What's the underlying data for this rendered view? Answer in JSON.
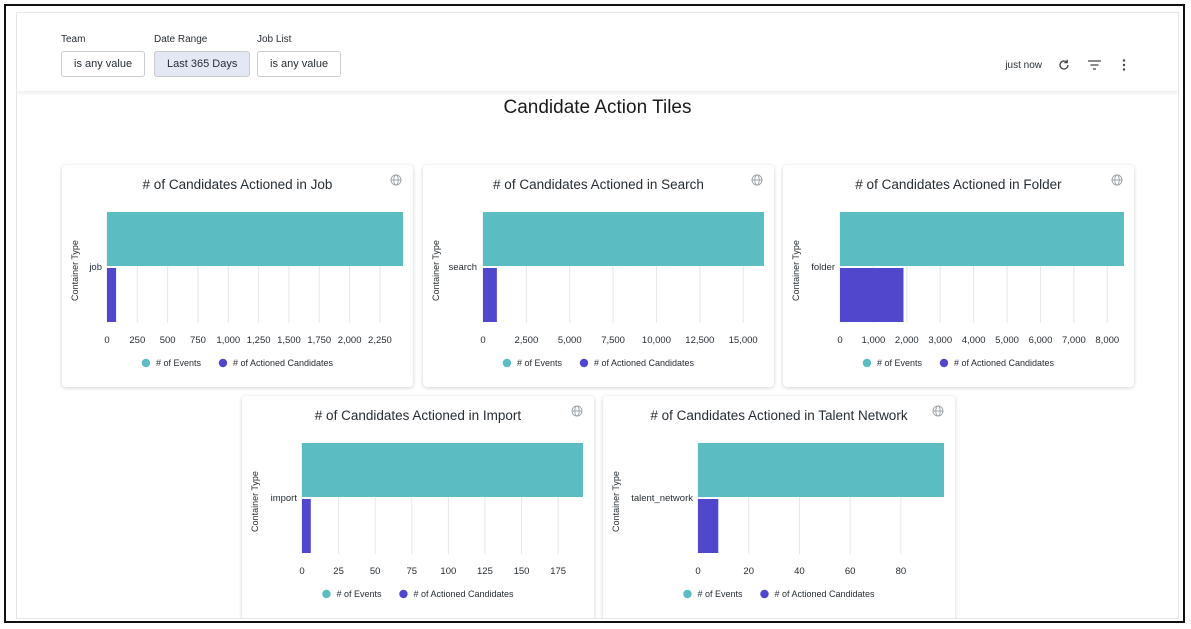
{
  "filters": [
    {
      "label": "Team",
      "value": "is any value",
      "active": false
    },
    {
      "label": "Date Range",
      "value": "Last 365 Days",
      "active": true
    },
    {
      "label": "Job List",
      "value": "is any value",
      "active": false
    }
  ],
  "toolbar": {
    "status": "just now",
    "refresh_icon": "refresh-icon",
    "filter_icon": "filter-icon",
    "menu_icon": "kebab-menu-icon"
  },
  "dashboard": {
    "title": "Candidate Action Tiles"
  },
  "colors": {
    "events": "#5bbcc1",
    "actioned": "#5047cc",
    "grid": "#e6e7e9",
    "text": "#262d33"
  },
  "chart_data": [
    {
      "type": "bar",
      "orientation": "horizontal",
      "title": "# of Candidates Actioned in Job",
      "ylabel": "Container Type",
      "categories": [
        "job"
      ],
      "series": [
        {
          "name": "# of Events",
          "values": [
            2440
          ]
        },
        {
          "name": "# of Actioned Candidates",
          "values": [
            75
          ]
        }
      ],
      "xlim": [
        0,
        2440
      ],
      "xticks": [
        0,
        250,
        500,
        750,
        1000,
        1250,
        1500,
        1750,
        2000,
        2250
      ],
      "xtick_labels": [
        "0",
        "250",
        "500",
        "750",
        "1,000",
        "1,250",
        "1,500",
        "1,750",
        "2,000",
        "2,250"
      ]
    },
    {
      "type": "bar",
      "orientation": "horizontal",
      "title": "# of Candidates Actioned in Search",
      "ylabel": "Container Type",
      "categories": [
        "search"
      ],
      "series": [
        {
          "name": "# of Events",
          "values": [
            16200
          ]
        },
        {
          "name": "# of Actioned Candidates",
          "values": [
            800
          ]
        }
      ],
      "xlim": [
        0,
        16200
      ],
      "xticks": [
        0,
        2500,
        5000,
        7500,
        10000,
        12500,
        15000
      ],
      "xtick_labels": [
        "0",
        "2,500",
        "5,000",
        "7,500",
        "10,000",
        "12,500",
        "15,000"
      ]
    },
    {
      "type": "bar",
      "orientation": "horizontal",
      "title": "# of Candidates Actioned in Folder",
      "ylabel": "Container Type",
      "categories": [
        "folder"
      ],
      "series": [
        {
          "name": "# of Events",
          "values": [
            8500
          ]
        },
        {
          "name": "# of Actioned Candidates",
          "values": [
            1900
          ]
        }
      ],
      "xlim": [
        0,
        8500
      ],
      "xticks": [
        0,
        1000,
        2000,
        3000,
        4000,
        5000,
        6000,
        7000,
        8000
      ],
      "xtick_labels": [
        "0",
        "1,000",
        "2,000",
        "3,000",
        "4,000",
        "5,000",
        "6,000",
        "7,000",
        "8,000"
      ]
    },
    {
      "type": "bar",
      "orientation": "horizontal",
      "title": "# of Candidates Actioned in Import",
      "ylabel": "Container Type",
      "categories": [
        "import"
      ],
      "series": [
        {
          "name": "# of Events",
          "values": [
            192
          ]
        },
        {
          "name": "# of Actioned Candidates",
          "values": [
            6
          ]
        }
      ],
      "xlim": [
        0,
        192
      ],
      "xticks": [
        0,
        25,
        50,
        75,
        100,
        125,
        150,
        175
      ],
      "xtick_labels": [
        "0",
        "25",
        "50",
        "75",
        "100",
        "125",
        "150",
        "175"
      ]
    },
    {
      "type": "bar",
      "orientation": "horizontal",
      "title": "# of Candidates Actioned in Talent Network",
      "ylabel": "Container Type",
      "categories": [
        "talent_network"
      ],
      "series": [
        {
          "name": "# of Events",
          "values": [
            97
          ]
        },
        {
          "name": "# of Actioned Candidates",
          "values": [
            8
          ]
        }
      ],
      "xlim": [
        0,
        97
      ],
      "xticks": [
        0,
        20,
        40,
        60,
        80
      ],
      "xtick_labels": [
        "0",
        "20",
        "40",
        "60",
        "80"
      ]
    }
  ]
}
